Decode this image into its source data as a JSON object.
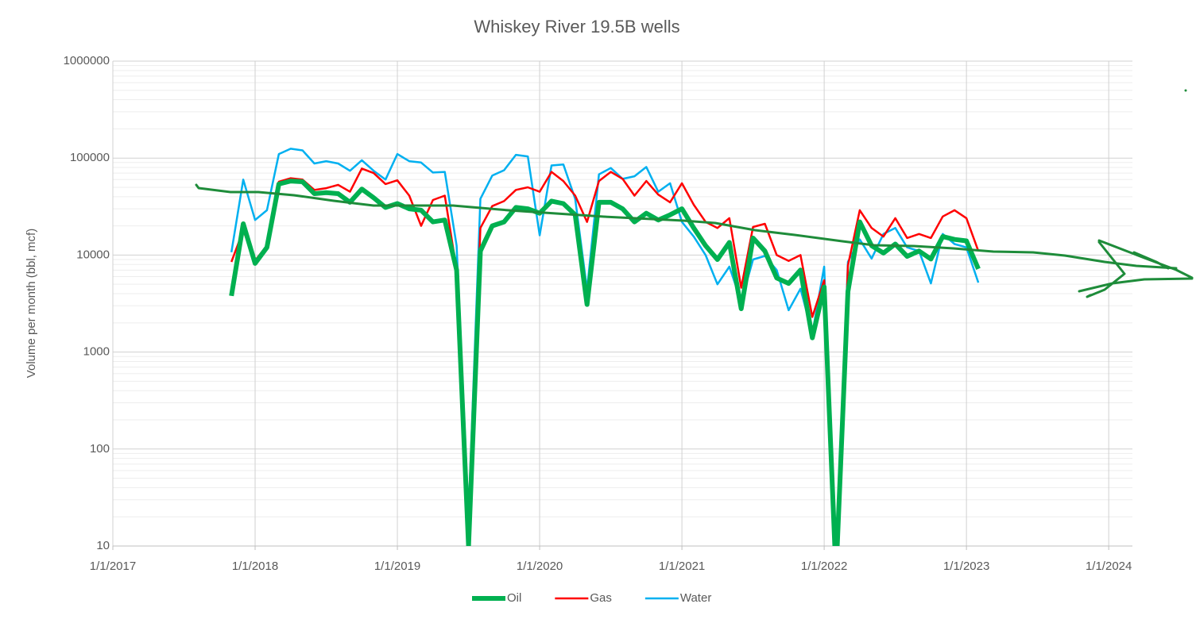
{
  "chart_data": {
    "type": "line",
    "title": "Whiskey River 19.5B wells",
    "y_label": "Volume per month (bbl, mcf)",
    "log_y": true,
    "grid": true,
    "legend": "bottom",
    "xlim": [
      "1/1/2017",
      "3/1/2024"
    ],
    "xticks": [
      "1/1/2017",
      "1/1/2018",
      "1/1/2019",
      "1/1/2020",
      "1/1/2021",
      "1/1/2022",
      "1/1/2023",
      "1/1/2024"
    ],
    "ylim": [
      10,
      1000000
    ],
    "yticks": [
      10,
      100,
      1000,
      10000,
      100000,
      1000000
    ],
    "x": [
      "11/1/2017",
      "12/1/2017",
      "1/1/2018",
      "2/1/2018",
      "3/1/2018",
      "4/1/2018",
      "5/1/2018",
      "6/1/2018",
      "7/1/2018",
      "8/1/2018",
      "9/1/2018",
      "10/1/2018",
      "11/1/2018",
      "12/1/2018",
      "1/1/2019",
      "2/1/2019",
      "3/1/2019",
      "4/1/2019",
      "5/1/2019",
      "6/1/2019",
      "7/1/2019",
      "8/1/2019",
      "9/1/2019",
      "10/1/2019",
      "11/1/2019",
      "12/1/2019",
      "1/1/2020",
      "2/1/2020",
      "3/1/2020",
      "4/1/2020",
      "5/1/2020",
      "6/1/2020",
      "7/1/2020",
      "8/1/2020",
      "9/1/2020",
      "10/1/2020",
      "11/1/2020",
      "12/1/2020",
      "1/1/2021",
      "2/1/2021",
      "3/1/2021",
      "4/1/2021",
      "5/1/2021",
      "6/1/2021",
      "7/1/2021",
      "8/1/2021",
      "9/1/2021",
      "10/1/2021",
      "11/1/2021",
      "12/1/2021",
      "1/1/2022",
      "2/1/2022",
      "3/1/2022",
      "4/1/2022",
      "5/1/2022",
      "6/1/2022",
      "7/1/2022",
      "8/1/2022",
      "9/1/2022",
      "10/1/2022",
      "11/1/2022",
      "12/1/2022",
      "1/1/2023",
      "2/1/2023"
    ],
    "series": [
      {
        "name": "Oil",
        "color": "#00b050",
        "width": 6,
        "values": [
          3800,
          21000,
          8200,
          12000,
          54000,
          58000,
          57000,
          43000,
          44000,
          43000,
          35000,
          48000,
          39000,
          31000,
          34000,
          30000,
          29000,
          22000,
          23000,
          7000,
          10,
          11000,
          20000,
          22000,
          31000,
          30000,
          27000,
          36000,
          34000,
          26000,
          3100,
          35000,
          35000,
          30000,
          22000,
          27000,
          23000,
          26000,
          30000,
          19000,
          12500,
          9000,
          13500,
          2800,
          15000,
          11000,
          5800,
          5100,
          7000,
          1400,
          4700,
          5,
          4200,
          22000,
          12500,
          10500,
          13000,
          9700,
          11000,
          9100,
          15500,
          14500,
          14000,
          7200
        ]
      },
      {
        "name": "Gas",
        "color": "#ff0000",
        "width": 2.5,
        "values": [
          8500,
          18000,
          8800,
          12500,
          57000,
          62000,
          60000,
          47000,
          49000,
          53000,
          45000,
          78000,
          70000,
          54000,
          59000,
          41000,
          20000,
          37000,
          41000,
          7000,
          10,
          19000,
          32000,
          36000,
          47000,
          50000,
          45000,
          72000,
          58000,
          41000,
          22000,
          58000,
          72000,
          61000,
          41000,
          58000,
          42000,
          35000,
          55000,
          33000,
          22000,
          19000,
          24000,
          4600,
          19500,
          21000,
          10000,
          8700,
          10000,
          2300,
          5500,
          5,
          7800,
          29000,
          19000,
          15500,
          24000,
          15000,
          16500,
          15000,
          25000,
          29000,
          24000,
          11000
        ]
      },
      {
        "name": "Water",
        "color": "#00b0f0",
        "width": 2.5,
        "values": [
          10700,
          60000,
          23000,
          29000,
          110000,
          125000,
          120000,
          88000,
          93000,
          88000,
          74000,
          95000,
          74000,
          60000,
          110000,
          93000,
          90000,
          71000,
          72000,
          12500,
          20,
          38000,
          66000,
          75000,
          108000,
          104000,
          16000,
          84000,
          86000,
          38000,
          4400,
          68000,
          79000,
          61000,
          65000,
          81000,
          45000,
          55000,
          22000,
          15500,
          10000,
          5000,
          7600,
          3300,
          9000,
          9800,
          7000,
          2700,
          4500,
          1550,
          7600,
          5,
          8500,
          14500,
          9200,
          16500,
          19000,
          12000,
          11000,
          5100,
          16500,
          13000,
          12000,
          5200
        ]
      }
    ]
  }
}
